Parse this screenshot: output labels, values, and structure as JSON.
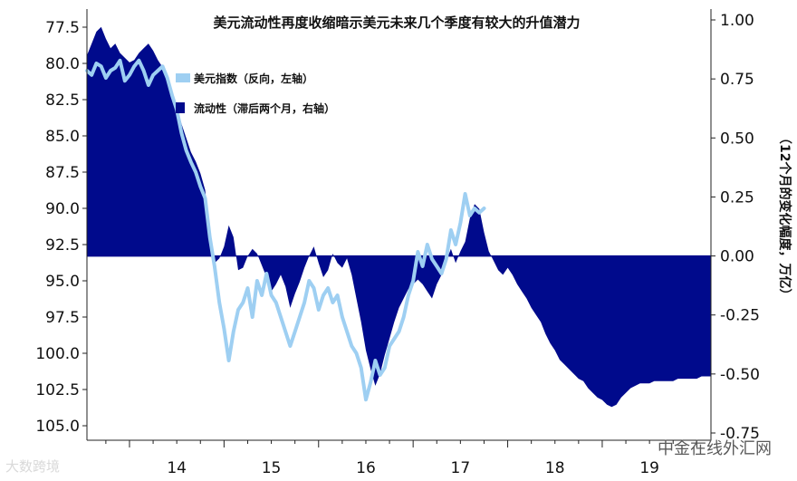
{
  "chart_data": {
    "type": "area",
    "title": "美元流动性再度收缩暗示美元未来几个季度有较大的升值潜力",
    "xlabel": "",
    "ylabel_left": "",
    "ylabel_right": "（12个月的变化幅度，万亿）",
    "x_ticks": [
      "14",
      "15",
      "16",
      "17",
      "18",
      "19"
    ],
    "x_range": [
      2013.55,
      2020.15
    ],
    "y_left": {
      "range": [
        77.0,
        105.5
      ],
      "inverted": true,
      "ticks": [
        "77.5",
        "80.0",
        "82.5",
        "85.0",
        "87.5",
        "90.0",
        "92.5",
        "95.0",
        "97.5",
        "100.0",
        "102.5",
        "105.0"
      ]
    },
    "y_right": {
      "range": [
        -0.75,
        1.0
      ],
      "ticks": [
        "1.00",
        "0.75",
        "0.50",
        "0.25",
        "0.00",
        "-0.25",
        "-0.50",
        "-0.75"
      ]
    },
    "legend_position": "top-left",
    "colors": {
      "usd": "#9ecff2",
      "liquidity": "#000a8c"
    },
    "series": [
      {
        "name": "美元指数（反向，左轴）",
        "axis": "left",
        "render": "line",
        "x": [
          2013.55,
          2013.6,
          2013.65,
          2013.7,
          2013.75,
          2013.8,
          2013.85,
          2013.9,
          2013.95,
          2014.0,
          2014.05,
          2014.1,
          2014.15,
          2014.2,
          2014.25,
          2014.3,
          2014.35,
          2014.4,
          2014.45,
          2014.5,
          2014.55,
          2014.6,
          2014.65,
          2014.7,
          2014.75,
          2014.8,
          2014.85,
          2014.9,
          2014.95,
          2015.0,
          2015.05,
          2015.1,
          2015.15,
          2015.2,
          2015.25,
          2015.3,
          2015.35,
          2015.4,
          2015.45,
          2015.5,
          2015.55,
          2015.6,
          2015.65,
          2015.7,
          2015.75,
          2015.8,
          2015.85,
          2015.9,
          2015.95,
          2016.0,
          2016.05,
          2016.1,
          2016.15,
          2016.2,
          2016.25,
          2016.3,
          2016.35,
          2016.4,
          2016.45,
          2016.5,
          2016.55,
          2016.6,
          2016.65,
          2016.7,
          2016.75,
          2016.8,
          2016.85,
          2016.9,
          2016.95,
          2017.0,
          2017.05,
          2017.1,
          2017.15,
          2017.2,
          2017.25,
          2017.3,
          2017.35,
          2017.4,
          2017.45,
          2017.5,
          2017.55,
          2017.6,
          2017.65,
          2017.7,
          2017.75
        ],
        "values": [
          80.5,
          80.8,
          80.0,
          80.2,
          81.0,
          80.5,
          80.3,
          79.8,
          81.2,
          80.8,
          80.2,
          79.8,
          80.5,
          81.5,
          80.8,
          80.5,
          80.2,
          81.0,
          82.2,
          83.2,
          84.8,
          86.0,
          86.8,
          87.5,
          88.5,
          89.3,
          92.0,
          94.0,
          96.5,
          98.3,
          100.5,
          98.5,
          97.0,
          96.5,
          95.5,
          97.5,
          95.0,
          96.0,
          94.5,
          96.0,
          96.5,
          97.5,
          98.5,
          99.5,
          98.5,
          97.5,
          96.5,
          95.0,
          95.5,
          97.0,
          96.0,
          95.5,
          96.5,
          96.0,
          97.5,
          98.5,
          99.5,
          100.0,
          101.0,
          103.2,
          102.0,
          100.5,
          101.5,
          101.0,
          99.5,
          99.0,
          98.5,
          97.5,
          96.0,
          95.0,
          93.0,
          94.0,
          92.5,
          93.5,
          94.0,
          94.5,
          93.5,
          91.5,
          92.5,
          91.0,
          89.0,
          90.5,
          90.0,
          90.3,
          90.0
        ]
      },
      {
        "name": "流动性（滞后两个月，右轴）",
        "axis": "right",
        "render": "area",
        "x": [
          2013.55,
          2013.6,
          2013.65,
          2013.7,
          2013.75,
          2013.8,
          2013.85,
          2013.9,
          2013.95,
          2014.0,
          2014.05,
          2014.1,
          2014.15,
          2014.2,
          2014.25,
          2014.3,
          2014.35,
          2014.4,
          2014.45,
          2014.5,
          2014.55,
          2014.6,
          2014.65,
          2014.7,
          2014.75,
          2014.8,
          2014.85,
          2014.9,
          2014.95,
          2015.0,
          2015.05,
          2015.1,
          2015.15,
          2015.2,
          2015.25,
          2015.3,
          2015.35,
          2015.4,
          2015.45,
          2015.5,
          2015.55,
          2015.6,
          2015.65,
          2015.7,
          2015.75,
          2015.8,
          2015.85,
          2015.9,
          2015.95,
          2016.0,
          2016.05,
          2016.1,
          2016.15,
          2016.2,
          2016.25,
          2016.3,
          2016.35,
          2016.4,
          2016.45,
          2016.5,
          2016.55,
          2016.6,
          2016.65,
          2016.7,
          2016.75,
          2016.8,
          2016.85,
          2016.9,
          2016.95,
          2017.0,
          2017.05,
          2017.1,
          2017.15,
          2017.2,
          2017.25,
          2017.3,
          2017.35,
          2017.4,
          2017.45,
          2017.5,
          2017.55,
          2017.6,
          2017.65,
          2017.7,
          2017.75,
          2017.8,
          2017.85,
          2017.9,
          2017.95,
          2018.0,
          2018.05,
          2018.1,
          2018.15,
          2018.2,
          2018.25,
          2018.3,
          2018.35,
          2018.4,
          2018.45,
          2018.5,
          2018.55,
          2018.6,
          2018.65,
          2018.7,
          2018.75,
          2018.8,
          2018.85,
          2018.9,
          2018.95,
          2019.0,
          2019.05,
          2019.1,
          2019.15,
          2019.2,
          2019.25,
          2019.3,
          2019.35,
          2019.4,
          2019.45,
          2019.5,
          2019.55,
          2019.6,
          2019.65,
          2019.7,
          2019.75,
          2019.8,
          2019.85,
          2019.9,
          2019.95,
          2020.0,
          2020.05,
          2020.1,
          2020.15
        ],
        "values": [
          0.85,
          0.9,
          0.95,
          0.97,
          0.92,
          0.88,
          0.9,
          0.86,
          0.84,
          0.82,
          0.83,
          0.86,
          0.88,
          0.9,
          0.87,
          0.83,
          0.8,
          0.76,
          0.7,
          0.64,
          0.56,
          0.5,
          0.44,
          0.4,
          0.35,
          0.28,
          0.1,
          -0.03,
          -0.01,
          0.04,
          0.13,
          0.08,
          -0.06,
          -0.05,
          0.0,
          0.03,
          0.01,
          -0.04,
          -0.09,
          -0.15,
          -0.12,
          -0.08,
          -0.13,
          -0.22,
          -0.16,
          -0.11,
          -0.05,
          0.0,
          0.04,
          -0.03,
          -0.09,
          -0.06,
          0.01,
          -0.03,
          -0.05,
          -0.01,
          -0.08,
          -0.18,
          -0.28,
          -0.4,
          -0.48,
          -0.55,
          -0.5,
          -0.42,
          -0.35,
          -0.28,
          -0.22,
          -0.18,
          -0.14,
          -0.12,
          -0.1,
          -0.12,
          -0.15,
          -0.18,
          -0.12,
          -0.08,
          -0.02,
          0.03,
          -0.03,
          0.02,
          0.06,
          0.16,
          0.22,
          0.2,
          0.1,
          0.02,
          -0.02,
          -0.06,
          -0.08,
          -0.05,
          -0.08,
          -0.12,
          -0.15,
          -0.18,
          -0.22,
          -0.25,
          -0.28,
          -0.33,
          -0.37,
          -0.4,
          -0.44,
          -0.46,
          -0.48,
          -0.5,
          -0.52,
          -0.53,
          -0.56,
          -0.58,
          -0.6,
          -0.61,
          -0.63,
          -0.64,
          -0.63,
          -0.6,
          -0.58,
          -0.56,
          -0.55,
          -0.54,
          -0.54,
          -0.54,
          -0.53,
          -0.53,
          -0.53,
          -0.53,
          -0.53,
          -0.52,
          -0.52,
          -0.52,
          -0.52,
          -0.52,
          -0.51,
          -0.51,
          -0.51
        ]
      }
    ]
  },
  "watermarks": {
    "left": "大数跨境",
    "right": "中金在线外汇网"
  }
}
